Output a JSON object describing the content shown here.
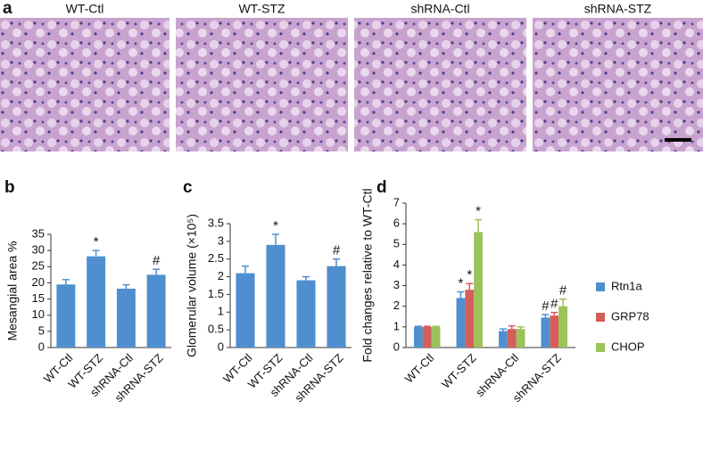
{
  "panel_a": {
    "label": "a",
    "titles": [
      "WT-Ctl",
      "WT-STZ",
      "shRNA-Ctl",
      "shRNA-STZ"
    ]
  },
  "chart_data": [
    {
      "label": "b",
      "type": "bar",
      "y_label": "Mesangial area %",
      "categories": [
        "WT-Ctl",
        "WT-STZ",
        "shRNA-Ctl",
        "shRNA-STZ"
      ],
      "values": [
        19.5,
        28.2,
        18.2,
        22.5
      ],
      "errors": [
        1.5,
        1.8,
        1.2,
        1.7
      ],
      "annotations": [
        null,
        "*",
        null,
        "#"
      ],
      "color": "#4f8fcf",
      "ylim": [
        0,
        35
      ],
      "yticks": [
        0,
        5,
        10,
        15,
        20,
        25,
        30,
        35
      ]
    },
    {
      "label": "c",
      "type": "bar",
      "y_label": "Glomerular volume (×10⁵)",
      "categories": [
        "WT-Ctl",
        "WT-STZ",
        "shRNA-Ctl",
        "shRNA-STZ"
      ],
      "values": [
        2.1,
        2.9,
        1.9,
        2.3
      ],
      "errors": [
        0.2,
        0.3,
        0.1,
        0.2
      ],
      "annotations": [
        null,
        "*",
        null,
        "#"
      ],
      "color": "#4f8fcf",
      "ylim": [
        0,
        3.5
      ],
      "yticks": [
        0,
        0.5,
        1,
        1.5,
        2,
        2.5,
        3,
        3.5
      ]
    },
    {
      "label": "d",
      "type": "bar",
      "y_label": "Fold changes relative to WT-Ctl",
      "categories": [
        "WT-Ctl",
        "WT-STZ",
        "shRNA-Ctl",
        "shRNA-STZ"
      ],
      "series": [
        {
          "name": "Rtn1a",
          "color": "#4f8fcf",
          "values": [
            1,
            2.4,
            0.8,
            1.45
          ],
          "errors": [
            0.03,
            0.3,
            0.1,
            0.15
          ],
          "annotations": [
            null,
            "*",
            null,
            "#"
          ]
        },
        {
          "name": "GRP78",
          "color": "#d45f5a",
          "values": [
            1,
            2.8,
            0.9,
            1.55
          ],
          "errors": [
            0.03,
            0.3,
            0.15,
            0.15
          ],
          "annotations": [
            null,
            "*",
            null,
            "#"
          ]
        },
        {
          "name": "CHOP",
          "color": "#9cc25a",
          "values": [
            1,
            5.6,
            0.9,
            2.0
          ],
          "errors": [
            0.03,
            0.6,
            0.1,
            0.35
          ],
          "annotations": [
            null,
            "*",
            null,
            "#"
          ]
        }
      ],
      "ylim": [
        0,
        7
      ],
      "yticks": [
        0,
        1,
        2,
        3,
        4,
        5,
        6,
        7
      ],
      "legend": "right"
    }
  ]
}
